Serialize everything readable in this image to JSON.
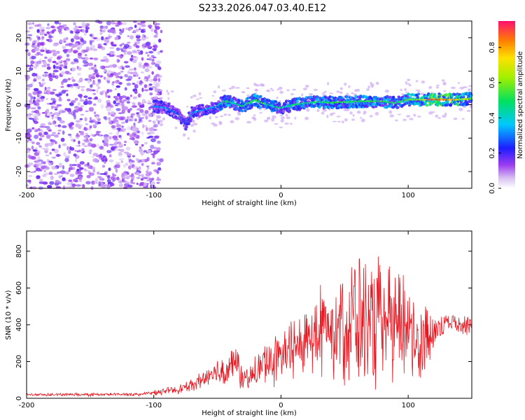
{
  "title": "S233.2026.047.03.40.E12",
  "colors": {
    "axis": "#000000",
    "snr_line": "#e8141e",
    "background": "#ffffff"
  },
  "chart_data": [
    {
      "type": "heatmap",
      "title": "",
      "xlabel": "Height of straight line (km)",
      "ylabel": "Frequency (Hz)",
      "xlim": [
        -200,
        150
      ],
      "ylim": [
        -25,
        25
      ],
      "x_ticks": [
        -200,
        -100,
        0,
        100
      ],
      "x_tick_labels": [
        "-200",
        "-100",
        "0",
        "100"
      ],
      "y_ticks": [
        -20,
        -10,
        0,
        10,
        20
      ],
      "y_tick_labels": [
        "-20",
        "-10",
        "0",
        "10",
        "20"
      ],
      "colorbar": {
        "label": "Normalized spectral amplitude",
        "range": [
          0,
          0.95
        ],
        "ticks": [
          0,
          0.2,
          0.4,
          0.6,
          0.8
        ],
        "tick_labels": [
          "0.0",
          "0.2",
          "0.4",
          "0.6",
          "0.8"
        ],
        "colormap": "rainbow"
      },
      "ridge": {
        "description": "dominant frequency track",
        "x": [
          -100,
          -90,
          -80,
          -75,
          -70,
          -60,
          -50,
          -45,
          -40,
          -30,
          -20,
          -15,
          -10,
          0,
          10,
          20,
          30,
          40,
          50,
          60,
          70,
          80,
          90,
          100,
          110,
          120,
          130,
          140,
          150
        ],
        "y": [
          -0.5,
          -1.0,
          -3.0,
          -6.0,
          -2.5,
          -1.5,
          -0.5,
          1.0,
          0.8,
          -0.5,
          1.5,
          0.5,
          0.0,
          -1.0,
          0.0,
          0.5,
          0.8,
          0.6,
          0.8,
          1.0,
          1.0,
          1.0,
          0.5,
          1.5,
          1.5,
          1.5,
          1.5,
          1.5,
          1.8
        ],
        "amplitude": [
          0.35,
          0.35,
          0.3,
          0.3,
          0.35,
          0.35,
          0.4,
          0.55,
          0.5,
          0.5,
          0.55,
          0.6,
          0.5,
          0.45,
          0.5,
          0.5,
          0.55,
          0.55,
          0.55,
          0.55,
          0.55,
          0.55,
          0.55,
          0.6,
          0.7,
          0.95,
          0.9,
          0.75,
          0.6
        ]
      },
      "noise_region": {
        "x_range": [
          -200,
          -100
        ],
        "amplitude": 0.15
      }
    },
    {
      "type": "line",
      "title": "",
      "xlabel": "Height of straight line (km)",
      "ylabel": "SNR (10 * v/v)",
      "xlim": [
        -200,
        150
      ],
      "ylim": [
        0,
        910
      ],
      "x_ticks": [
        -200,
        -100,
        0,
        100
      ],
      "x_tick_labels": [
        "-200",
        "-100",
        "0",
        "100"
      ],
      "y_ticks": [
        0,
        200,
        400,
        600,
        800
      ],
      "y_tick_labels": [
        "0",
        "200",
        "400",
        "600",
        "800"
      ],
      "series": [
        {
          "name": "SNR",
          "envelope": {
            "x": [
              -200,
              -150,
              -110,
              -100,
              -90,
              -80,
              -70,
              -60,
              -50,
              -40,
              -35,
              -30,
              -20,
              -10,
              0,
              10,
              20,
              30,
              40,
              50,
              60,
              70,
              80,
              90,
              100,
              110,
              120,
              130,
              140,
              150
            ],
            "center": [
              20,
              20,
              22,
              30,
              40,
              50,
              70,
              110,
              140,
              170,
              200,
              90,
              140,
              210,
              220,
              270,
              320,
              380,
              400,
              420,
              430,
              400,
              380,
              390,
              380,
              320,
              350,
              420,
              410,
              400
            ],
            "spread": [
              10,
              10,
              10,
              15,
              20,
              30,
              40,
              60,
              80,
              110,
              130,
              60,
              100,
              150,
              180,
              180,
              220,
              300,
              400,
              420,
              420,
              420,
              400,
              400,
              420,
              260,
              150,
              50,
              60,
              80
            ]
          }
        }
      ]
    }
  ]
}
